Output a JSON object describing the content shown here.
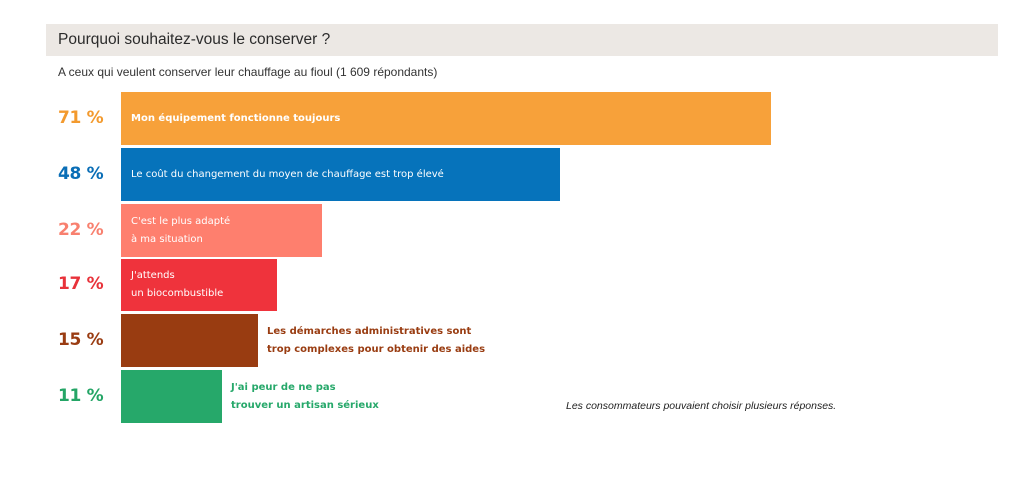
{
  "header": {
    "title": "Pourquoi souhaitez-vous le conserver ?",
    "subtitle": "A ceux qui veulent conserver leur chauffage au fioul (1 609 répondants)"
  },
  "note": "Les consommateurs pouvaient choisir plusieurs réponses.",
  "chart_data": {
    "type": "bar",
    "orientation": "horizontal",
    "title": "Pourquoi souhaitez-vous le conserver ?",
    "subtitle": "A ceux qui veulent conserver leur chauffage au fioul (1 609 répondants)",
    "unit": "%",
    "categories": [
      "Mon équipement fonctionne toujours",
      "Le coût du changement du moyen de chauffage est trop élevé",
      "C'est le plus adapté à ma situation",
      "J'attends un biocombustible",
      "Les démarches administratives sont trop complexes pour obtenir des aides",
      "J'ai peur de ne pas trouver un artisan sérieux"
    ],
    "values": [
      71,
      48,
      22,
      17,
      15,
      11
    ],
    "bars": [
      {
        "pct_text": "71 %",
        "value": 71,
        "color": "#f7a13a",
        "pct_color": "#f39a2e",
        "lines": [
          "Mon équipement fonctionne toujours"
        ],
        "label_inside": true,
        "label_bold": true
      },
      {
        "pct_text": "48 %",
        "value": 48,
        "color": "#0673bb",
        "pct_color": "#0a6eb6",
        "lines": [
          "Le coût du changement du moyen de chauffage est trop élevé"
        ],
        "label_inside": true,
        "label_bold": false
      },
      {
        "pct_text": "22 %",
        "value": 22,
        "color": "#fe7f6e",
        "pct_color": "#f8806f",
        "lines": [
          "C'est le plus adapté",
          "à ma situation"
        ],
        "label_inside": true,
        "label_bold": false
      },
      {
        "pct_text": "17 %",
        "value": 17,
        "color": "#ef333c",
        "pct_color": "#e8323a",
        "lines": [
          "J'attends",
          "un biocombustible"
        ],
        "label_inside": true,
        "label_bold": false
      },
      {
        "pct_text": "15 %",
        "value": 15,
        "color": "#993c11",
        "pct_color": "#9a3c12",
        "lines": [
          "Les démarches administratives sont",
          "trop complexes pour obtenir des aides"
        ],
        "label_inside": false,
        "label_bold": false
      },
      {
        "pct_text": "11 %",
        "value": 11,
        "color": "#26a86a",
        "pct_color": "#24a566",
        "lines": [
          "J'ai peur de ne pas",
          "trouver un artisan sérieux"
        ],
        "label_inside": false,
        "label_bold": false
      }
    ],
    "xlim": [
      0,
      71
    ],
    "grid": false,
    "legend": "none"
  }
}
